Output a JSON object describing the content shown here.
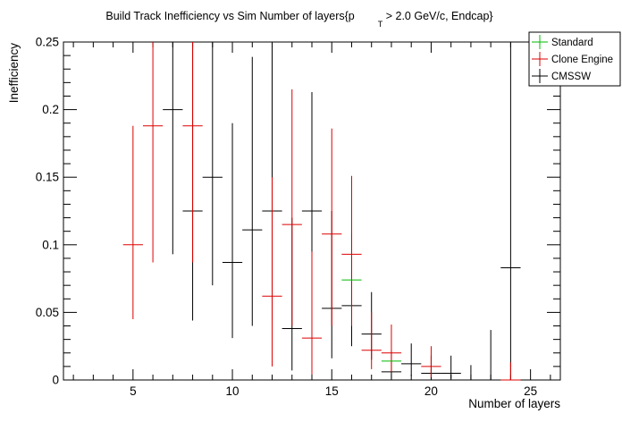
{
  "chart_data": {
    "type": "scatter",
    "title_main": "Build Track Inefficiency vs Sim Number of layers{p",
    "title_sub": "T",
    "title_rest": " > 2.0 GeV/c, Endcap}",
    "xlabel": "Number of layers",
    "ylabel": "Inefficiency",
    "xlim": [
      1.5,
      26.5
    ],
    "ylim": [
      0,
      0.25
    ],
    "x_ticks": [
      5,
      10,
      15,
      20,
      25
    ],
    "x_tick_labels": [
      "5",
      "10",
      "15",
      "20",
      "25"
    ],
    "y_ticks": [
      0,
      0.05,
      0.1,
      0.15,
      0.2,
      0.25
    ],
    "y_tick_labels": [
      "0",
      "0.05",
      "0.1",
      "0.15",
      "0.2",
      "0.25"
    ],
    "grid": false,
    "legend_position": "top-right",
    "series": [
      {
        "name": "Standard",
        "color": "#00bb00",
        "points": [
          {
            "x": 16,
            "y": 0.074,
            "lo": 0.074,
            "hi": 0.074
          },
          {
            "x": 18,
            "y": 0.014,
            "lo": 0.014,
            "hi": 0.014
          }
        ]
      },
      {
        "name": "Clone Engine",
        "color": "#dd0000",
        "points": [
          {
            "x": 5,
            "y": 0.1,
            "lo": 0.045,
            "hi": 0.188
          },
          {
            "x": 6,
            "y": 0.188,
            "lo": 0.087,
            "hi": 0.25
          },
          {
            "x": 8,
            "y": 0.188,
            "lo": 0.087,
            "hi": 0.25
          },
          {
            "x": 12,
            "y": 0.062,
            "lo": 0.01,
            "hi": 0.15
          },
          {
            "x": 13,
            "y": 0.115,
            "lo": 0.04,
            "hi": 0.215
          },
          {
            "x": 14,
            "y": 0.031,
            "lo": 0.004,
            "hi": 0.095
          },
          {
            "x": 15,
            "y": 0.108,
            "lo": 0.04,
            "hi": 0.186
          },
          {
            "x": 16,
            "y": 0.093,
            "lo": 0.04,
            "hi": 0.151
          },
          {
            "x": 17,
            "y": 0.022,
            "lo": 0.008,
            "hi": 0.05
          },
          {
            "x": 18,
            "y": 0.02,
            "lo": 0.006,
            "hi": 0.041
          },
          {
            "x": 20,
            "y": 0.01,
            "lo": 0.002,
            "hi": 0.025
          },
          {
            "x": 24,
            "y": 0.0,
            "lo": 0.0,
            "hi": 0.013
          }
        ]
      },
      {
        "name": "CMSSW",
        "color": "#000000",
        "points": [
          {
            "x": 7,
            "y": 0.2,
            "lo": 0.093,
            "hi": 0.25
          },
          {
            "x": 8,
            "y": 0.125,
            "lo": 0.044,
            "hi": 0.25
          },
          {
            "x": 9,
            "y": 0.15,
            "lo": 0.07,
            "hi": 0.25
          },
          {
            "x": 10,
            "y": 0.087,
            "lo": 0.031,
            "hi": 0.19
          },
          {
            "x": 11,
            "y": 0.111,
            "lo": 0.04,
            "hi": 0.239
          },
          {
            "x": 12,
            "y": 0.125,
            "lo": 0.044,
            "hi": 0.25
          },
          {
            "x": 13,
            "y": 0.038,
            "lo": 0.007,
            "hi": 0.12
          },
          {
            "x": 14,
            "y": 0.125,
            "lo": 0.045,
            "hi": 0.213
          },
          {
            "x": 15,
            "y": 0.053,
            "lo": 0.016,
            "hi": 0.125
          },
          {
            "x": 16,
            "y": 0.055,
            "lo": 0.025,
            "hi": 0.108
          },
          {
            "x": 17,
            "y": 0.034,
            "lo": 0.015,
            "hi": 0.065
          },
          {
            "x": 18,
            "y": 0.006,
            "lo": 0.001,
            "hi": 0.022
          },
          {
            "x": 19,
            "y": 0.012,
            "lo": 0.003,
            "hi": 0.027
          },
          {
            "x": 20,
            "y": 0.005,
            "lo": 0.001,
            "hi": 0.018
          },
          {
            "x": 21,
            "y": 0.005,
            "lo": 0.001,
            "hi": 0.018
          },
          {
            "x": 22,
            "y": 0.0,
            "lo": 0.0,
            "hi": 0.011
          },
          {
            "x": 23,
            "y": 0.0,
            "lo": 0.0,
            "hi": 0.037
          },
          {
            "x": 24,
            "y": 0.083,
            "lo": 0.0,
            "hi": 0.25
          }
        ]
      }
    ]
  }
}
